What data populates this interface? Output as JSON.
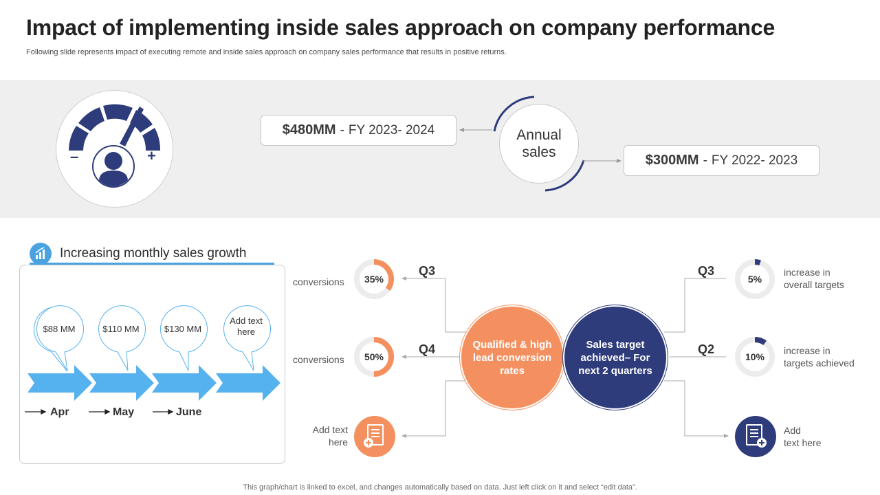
{
  "header": {
    "title": "Impact of implementing inside sales approach on company performance",
    "subtitle": "Following slide represents impact of executing remote and inside sales approach on company sales performance that results in positive returns."
  },
  "top_band": {
    "gauge": {
      "icon": "gauge-user-icon",
      "minus": "–",
      "plus": "+"
    },
    "fy_2023_2024": {
      "amount": "$480MM",
      "separator": "-",
      "year": "FY 2023- 2024"
    },
    "annual_sales": "Annual sales",
    "fy_2022_2023": {
      "amount": "$300MM",
      "separator": "-",
      "year": "FY 2022- 2023"
    }
  },
  "growth": {
    "title": "Increasing monthly sales growth",
    "icon": "bar-chart-icon",
    "bubbles": [
      "$88 MM",
      "$110 MM",
      "$130 MM",
      "Add text here"
    ],
    "months": [
      "Apr",
      "May",
      "June"
    ]
  },
  "left_metrics": [
    {
      "label": "conversions",
      "value": "35%",
      "fraction": 0.35,
      "quarter": "Q3"
    },
    {
      "label": "conversions",
      "value": "50%",
      "fraction": 0.5,
      "quarter": "Q4"
    },
    {
      "label": "Add text here",
      "icon": "document-add-icon"
    }
  ],
  "center": {
    "orange": "Qualified & high lead conversion rates",
    "navy": "Sales target achieved– For next 2 quarters"
  },
  "right_metrics": [
    {
      "quarter": "Q3",
      "value": "5%",
      "fraction": 0.05,
      "label_line1": "increase in",
      "label_line2": "overall targets"
    },
    {
      "quarter": "Q2",
      "value": "10%",
      "fraction": 0.1,
      "label_line1": "increase in",
      "label_line2": "targets achieved"
    },
    {
      "label_line1": "Add",
      "label_line2": "text here",
      "icon": "document-add-icon"
    }
  ],
  "footer": "This graph/chart is linked to excel, and changes automatically based on data. Just left click on it and select “edit data”.",
  "colors": {
    "navy": "#2e3c7c",
    "orange": "#f4905f",
    "blue": "#4aa3e0",
    "band": "#efefef"
  }
}
